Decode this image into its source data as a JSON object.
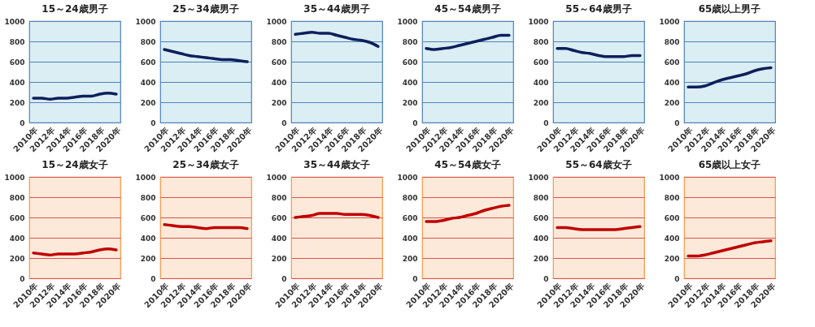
{
  "chart_data": [
    {
      "type": "line",
      "title": "15～24歳男子",
      "categories": [
        "2010年",
        null,
        "2012年",
        null,
        "2014年",
        null,
        "2016年",
        null,
        "2018年",
        null,
        "2020年"
      ],
      "series": [
        {
          "color": "#0d1f5c",
          "values": [
            240,
            240,
            230,
            240,
            240,
            250,
            260,
            260,
            280,
            290,
            280
          ]
        }
      ],
      "ylim": [
        0,
        1000
      ],
      "yticks": [
        0,
        200,
        400,
        600,
        800,
        1000
      ],
      "grid": "y",
      "marker": "none",
      "line_style": "solid",
      "legend": false
    },
    {
      "type": "line",
      "title": "25～34歳男子",
      "categories": [
        "2010年",
        null,
        "2012年",
        null,
        "2014年",
        null,
        "2016年",
        null,
        "2018年",
        null,
        "2020年"
      ],
      "series": [
        {
          "color": "#0d1f5c",
          "values": [
            720,
            700,
            680,
            660,
            650,
            640,
            630,
            620,
            620,
            610,
            600
          ]
        }
      ],
      "ylim": [
        0,
        1000
      ],
      "yticks": [
        0,
        200,
        400,
        600,
        800,
        1000
      ],
      "grid": "y",
      "marker": "none",
      "line_style": "solid",
      "legend": false
    },
    {
      "type": "line",
      "title": "35～44歳男子",
      "categories": [
        "2010年",
        null,
        "2012年",
        null,
        "2014年",
        null,
        "2016年",
        null,
        "2018年",
        null,
        "2020年"
      ],
      "series": [
        {
          "color": "#0d1f5c",
          "values": [
            870,
            880,
            890,
            880,
            880,
            860,
            840,
            820,
            810,
            790,
            750
          ]
        }
      ],
      "ylim": [
        0,
        1000
      ],
      "yticks": [
        0,
        200,
        400,
        600,
        800,
        1000
      ],
      "grid": "y",
      "marker": "none",
      "line_style": "solid",
      "legend": false
    },
    {
      "type": "line",
      "title": "45～54歳男子",
      "categories": [
        "2010年",
        null,
        "2012年",
        null,
        "2014年",
        null,
        "2016年",
        null,
        "2018年",
        null,
        "2020年"
      ],
      "series": [
        {
          "color": "#0d1f5c",
          "values": [
            730,
            720,
            730,
            740,
            760,
            780,
            800,
            820,
            840,
            860,
            860
          ]
        }
      ],
      "ylim": [
        0,
        1000
      ],
      "yticks": [
        0,
        200,
        400,
        600,
        800,
        1000
      ],
      "grid": "y",
      "marker": "none",
      "line_style": "solid",
      "legend": false
    },
    {
      "type": "line",
      "title": "55～64歳男子",
      "categories": [
        "2010年",
        null,
        "2012年",
        null,
        "2014年",
        null,
        "2016年",
        null,
        "2018年",
        null,
        "2020年"
      ],
      "series": [
        {
          "color": "#0d1f5c",
          "values": [
            730,
            730,
            710,
            690,
            680,
            660,
            650,
            650,
            650,
            660,
            660
          ]
        }
      ],
      "ylim": [
        0,
        1000
      ],
      "yticks": [
        0,
        200,
        400,
        600,
        800,
        1000
      ],
      "grid": "y",
      "marker": "none",
      "line_style": "solid",
      "legend": false
    },
    {
      "type": "line",
      "title": "65歳以上男子",
      "categories": [
        "2010年",
        null,
        "2012年",
        null,
        "2014年",
        null,
        "2016年",
        null,
        "2018年",
        null,
        "2020年"
      ],
      "series": [
        {
          "color": "#0d1f5c",
          "values": [
            350,
            350,
            360,
            390,
            420,
            440,
            460,
            480,
            510,
            530,
            540
          ]
        }
      ],
      "ylim": [
        0,
        1000
      ],
      "yticks": [
        0,
        200,
        400,
        600,
        800,
        1000
      ],
      "grid": "y",
      "marker": "none",
      "line_style": "solid",
      "legend": false
    },
    {
      "type": "line",
      "title": "15～24歳女子",
      "categories": [
        "2010年",
        null,
        "2012年",
        null,
        "2014年",
        null,
        "2016年",
        null,
        "2018年",
        null,
        "2020年"
      ],
      "series": [
        {
          "color": "#c00000",
          "values": [
            250,
            240,
            230,
            240,
            240,
            240,
            250,
            260,
            280,
            290,
            280
          ]
        }
      ],
      "ylim": [
        0,
        1000
      ],
      "yticks": [
        0,
        200,
        400,
        600,
        800,
        1000
      ],
      "grid": "y",
      "marker": "none",
      "line_style": "solid",
      "legend": false
    },
    {
      "type": "line",
      "title": "25～34歳女子",
      "categories": [
        "2010年",
        null,
        "2012年",
        null,
        "2014年",
        null,
        "2016年",
        null,
        "2018年",
        null,
        "2020年"
      ],
      "series": [
        {
          "color": "#c00000",
          "values": [
            530,
            520,
            510,
            510,
            500,
            490,
            500,
            500,
            500,
            500,
            490
          ]
        }
      ],
      "ylim": [
        0,
        1000
      ],
      "yticks": [
        0,
        200,
        400,
        600,
        800,
        1000
      ],
      "grid": "y",
      "marker": "none",
      "line_style": "solid",
      "legend": false
    },
    {
      "type": "line",
      "title": "35～44歳女子",
      "categories": [
        "2010年",
        null,
        "2012年",
        null,
        "2014年",
        null,
        "2016年",
        null,
        "2018年",
        null,
        "2020年"
      ],
      "series": [
        {
          "color": "#c00000",
          "values": [
            600,
            610,
            620,
            640,
            640,
            640,
            630,
            630,
            630,
            620,
            600
          ]
        }
      ],
      "ylim": [
        0,
        1000
      ],
      "yticks": [
        0,
        200,
        400,
        600,
        800,
        1000
      ],
      "grid": "y",
      "marker": "none",
      "line_style": "solid",
      "legend": false
    },
    {
      "type": "line",
      "title": "45～54歳女子",
      "categories": [
        "2010年",
        null,
        "2012年",
        null,
        "2014年",
        null,
        "2016年",
        null,
        "2018年",
        null,
        "2020年"
      ],
      "series": [
        {
          "color": "#c00000",
          "values": [
            560,
            560,
            570,
            590,
            600,
            620,
            640,
            670,
            690,
            710,
            720
          ]
        }
      ],
      "ylim": [
        0,
        1000
      ],
      "yticks": [
        0,
        200,
        400,
        600,
        800,
        1000
      ],
      "grid": "y",
      "marker": "none",
      "line_style": "solid",
      "legend": false
    },
    {
      "type": "line",
      "title": "55～64歳女子",
      "categories": [
        "2010年",
        null,
        "2012年",
        null,
        "2014年",
        null,
        "2016年",
        null,
        "2018年",
        null,
        "2020年"
      ],
      "series": [
        {
          "color": "#c00000",
          "values": [
            500,
            500,
            490,
            480,
            480,
            480,
            480,
            480,
            490,
            500,
            510
          ]
        }
      ],
      "ylim": [
        0,
        1000
      ],
      "yticks": [
        0,
        200,
        400,
        600,
        800,
        1000
      ],
      "grid": "y",
      "marker": "none",
      "line_style": "solid",
      "legend": false
    },
    {
      "type": "line",
      "title": "65歳以上女子",
      "categories": [
        "2010年",
        null,
        "2012年",
        null,
        "2014年",
        null,
        "2016年",
        null,
        "2018年",
        null,
        "2020年"
      ],
      "series": [
        {
          "color": "#c00000",
          "values": [
            220,
            220,
            230,
            250,
            270,
            290,
            310,
            330,
            350,
            360,
            370
          ]
        }
      ],
      "ylim": [
        0,
        1000
      ],
      "yticks": [
        0,
        200,
        400,
        600,
        800,
        1000
      ],
      "grid": "y",
      "marker": "none",
      "line_style": "solid",
      "legend": false
    }
  ]
}
